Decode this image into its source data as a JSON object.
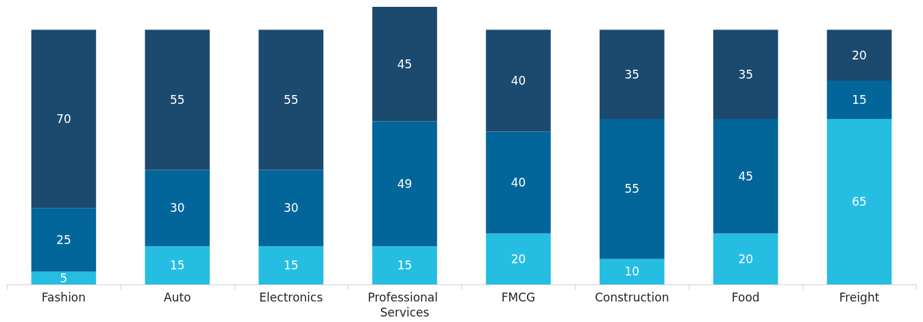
{
  "chart_data": {
    "type": "bar",
    "stacked": true,
    "data_labels": true,
    "categories": [
      "Fashion",
      "Auto",
      "Electronics",
      "Professional Services",
      "FMCG",
      "Construction",
      "Food",
      "Freight"
    ],
    "series": [
      {
        "color": "#26bde2",
        "values": [
          5,
          15,
          15,
          15,
          20,
          10,
          20,
          65
        ]
      },
      {
        "color": "#03669a",
        "values": [
          25,
          30,
          30,
          49,
          40,
          55,
          45,
          15
        ]
      },
      {
        "color": "#1c4a6e",
        "values": [
          70,
          55,
          55,
          45,
          40,
          35,
          35,
          20
        ]
      }
    ]
  }
}
